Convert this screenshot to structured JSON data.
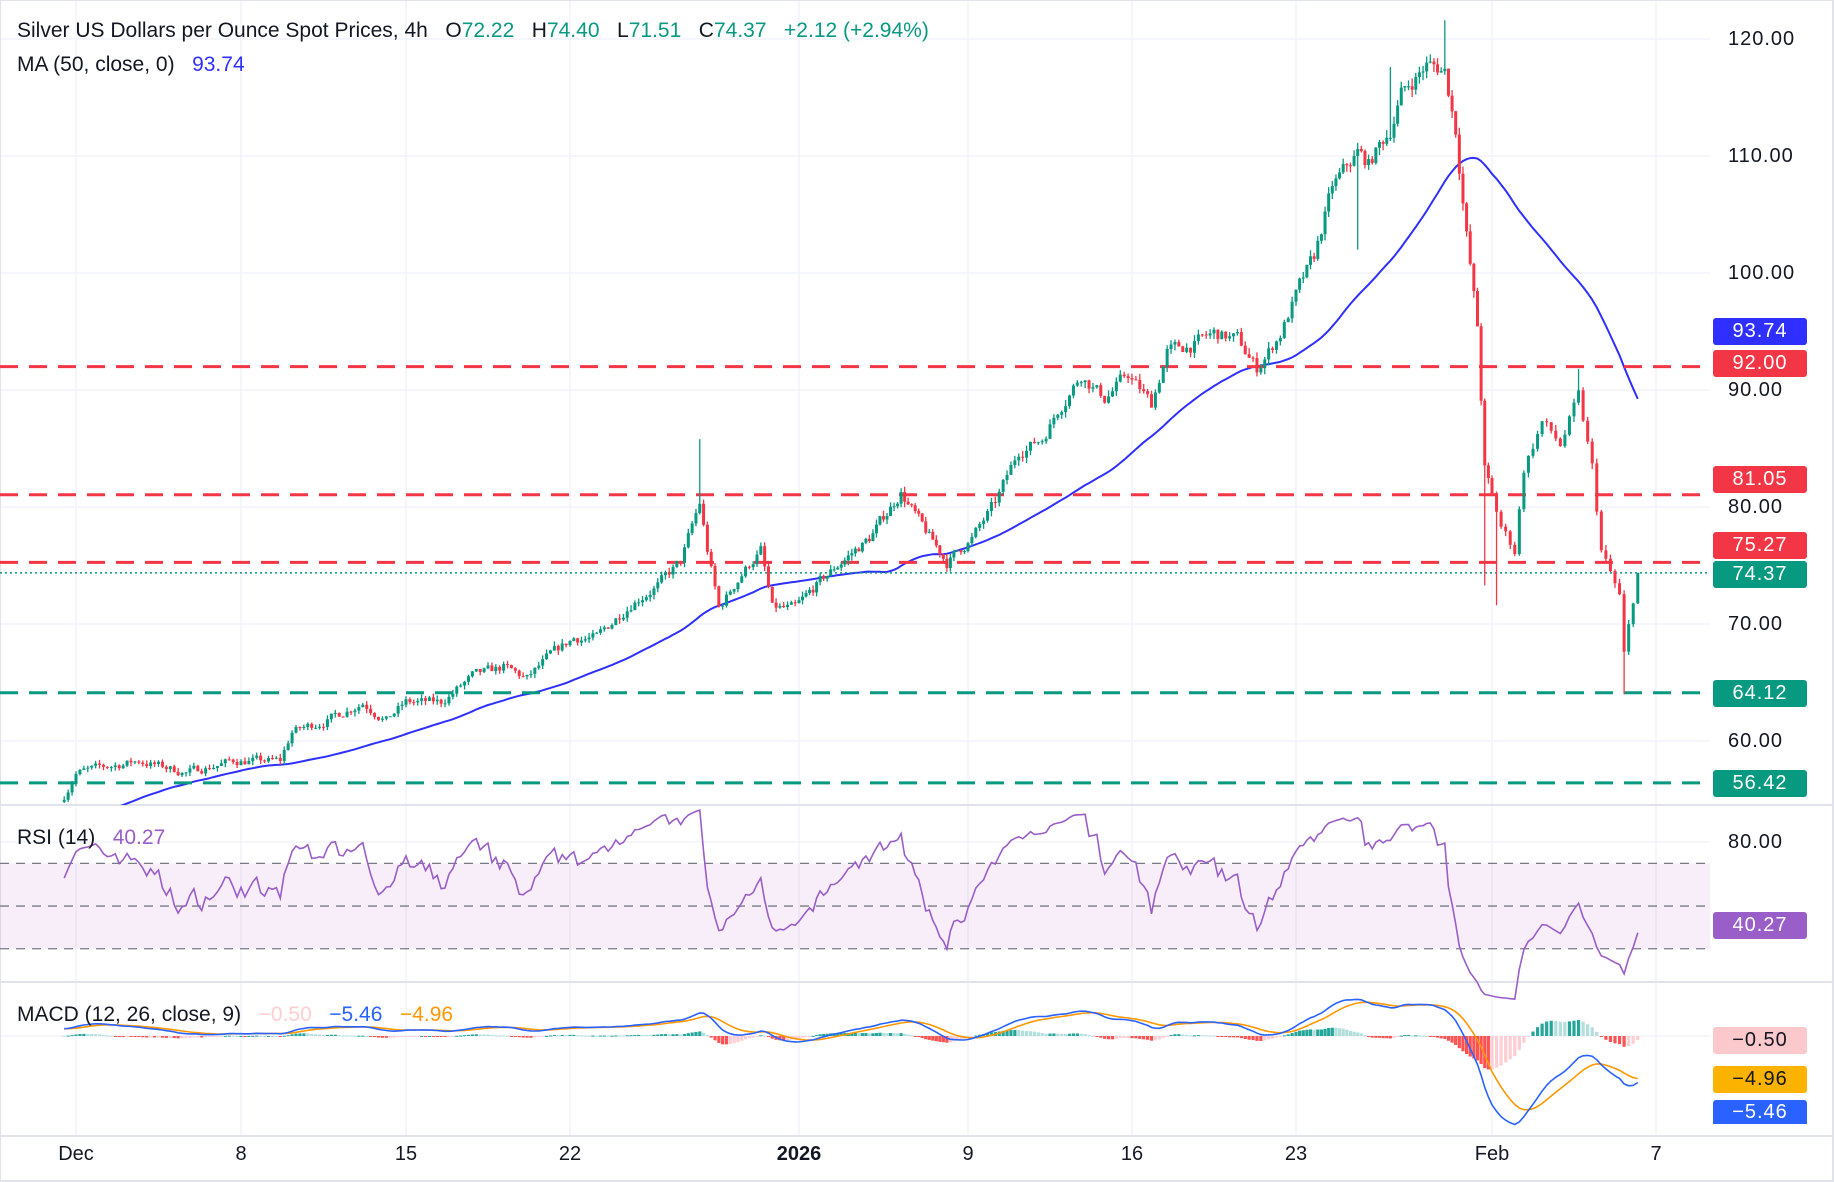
{
  "header": {
    "title": "Silver US Dollars per Ounce Spot Prices, 4h",
    "o_label": "O",
    "open": "72.22",
    "h_label": "H",
    "high": "74.40",
    "l_label": "L",
    "low": "71.51",
    "c_label": "C",
    "close": "74.37",
    "change": "+2.12 (+2.94%)"
  },
  "ma": {
    "label": "MA (50, close, 0)",
    "value": "93.74"
  },
  "rsi": {
    "label": "RSI (14)",
    "value": "40.27",
    "axis_tick": "80.00"
  },
  "macd": {
    "label": "MACD (12, 26, close, 9)",
    "histogram": "−0.50",
    "macd": "−5.46",
    "signal": "−4.96"
  },
  "price_axis": {
    "ticks": [
      "120.00",
      "110.00",
      "100.00",
      "90.00",
      "80.00",
      "70.00",
      "60.00"
    ]
  },
  "levels": [
    {
      "value": "92.00",
      "color": "#f23645"
    },
    {
      "value": "81.05",
      "color": "#f23645"
    },
    {
      "value": "75.27",
      "color": "#f23645"
    },
    {
      "value": "64.12",
      "color": "#089981"
    },
    {
      "value": "56.42",
      "color": "#089981"
    }
  ],
  "last_price": "74.37",
  "date_axis": [
    {
      "label": "Dec",
      "date": "2025-12-01"
    },
    {
      "label": "8",
      "date": "2025-12-08"
    },
    {
      "label": "15",
      "date": "2025-12-15"
    },
    {
      "label": "22",
      "date": "2025-12-22"
    },
    {
      "label": "2026",
      "date": "2026-01-01"
    },
    {
      "label": "9",
      "date": "2026-01-09"
    },
    {
      "label": "16",
      "date": "2026-01-16"
    },
    {
      "label": "23",
      "date": "2026-01-23"
    },
    {
      "label": "Feb",
      "date": "2026-02-01"
    },
    {
      "label": "7",
      "date": "2026-02-07"
    }
  ],
  "colors": {
    "up": "#089981",
    "down": "#f23645",
    "ma": "#2f2fff",
    "rsi": "#9a5ec8",
    "macd": "#2962ff",
    "signal": "#ff9800",
    "hist_up_strong": "#26a69a",
    "hist_up_weak": "#b2dfdb",
    "hist_down_strong": "#ff5252",
    "hist_down_weak": "#ffcdd2",
    "signal_tag": "#fbb300",
    "hist_tag": "#fbc8cc"
  },
  "chart_data": {
    "type": "candlestick",
    "interval": "4h",
    "ylim": [
      54,
      122
    ],
    "rsi_levels": [
      70,
      50,
      30
    ],
    "close_path": [
      [
        "2025-11-30T12:00",
        55.3
      ],
      [
        "2025-12-01T00:00",
        57.3
      ],
      [
        "2025-12-03T16:00",
        58.3
      ],
      [
        "2025-12-05T16:00",
        57.3
      ],
      [
        "2025-12-07T16:00",
        58.3
      ],
      [
        "2025-12-09T16:00",
        58.3
      ],
      [
        "2025-12-10T04:00",
        60.8
      ],
      [
        "2025-12-11T16:00",
        61.8
      ],
      [
        "2025-12-13T04:00",
        63.3
      ],
      [
        "2025-12-14T04:00",
        61.8
      ],
      [
        "2025-12-15T00:00",
        63.3
      ],
      [
        "2025-12-16T12:00",
        63.3
      ],
      [
        "2025-12-17T20:00",
        65.5
      ],
      [
        "2025-12-19T04:00",
        66.3
      ],
      [
        "2025-12-20T04:00",
        65.3
      ],
      [
        "2025-12-21T04:00",
        67.3
      ],
      [
        "2025-12-22T04:00",
        68.8
      ],
      [
        "2025-12-23T04:00",
        68.8
      ],
      [
        "2025-12-24T16:00",
        71.8
      ],
      [
        "2025-12-25T20:00",
        73.3
      ],
      [
        "2025-12-26T20:00",
        75.3
      ],
      [
        "2025-12-27T08:00",
        78.3
      ],
      [
        "2025-12-27T16:00",
        80.3
      ],
      [
        "2025-12-28T00:00",
        76.3
      ],
      [
        "2025-12-28T12:00",
        71.3
      ],
      [
        "2025-12-29T12:00",
        74.3
      ],
      [
        "2025-12-30T08:00",
        76.3
      ],
      [
        "2025-12-30T20:00",
        71.3
      ],
      [
        "2025-12-31T20:00",
        71.3
      ],
      [
        "2026-01-01T20:00",
        73.3
      ],
      [
        "2026-01-03T00:00",
        75.3
      ],
      [
        "2026-01-04T08:00",
        77.3
      ],
      [
        "2026-01-05T20:00",
        81.3
      ],
      [
        "2026-01-06T20:00",
        78.3
      ],
      [
        "2026-01-08T00:00",
        75.3
      ],
      [
        "2026-01-09T04:00",
        77.3
      ],
      [
        "2026-01-10T04:00",
        80.3
      ],
      [
        "2026-01-11T04:00",
        84.8
      ],
      [
        "2026-01-12T04:00",
        85.8
      ],
      [
        "2026-01-12T20:00",
        88.3
      ],
      [
        "2026-01-13T20:00",
        91.3
      ],
      [
        "2026-01-14T20:00",
        89.3
      ],
      [
        "2026-01-15T20:00",
        91.3
      ],
      [
        "2026-01-16T20:00",
        88.8
      ],
      [
        "2026-01-17T12:00",
        93.3
      ],
      [
        "2026-01-18T12:00",
        93.8
      ],
      [
        "2026-01-19T12:00",
        94.8
      ],
      [
        "2026-01-20T12:00",
        94.3
      ],
      [
        "2026-01-21T08:00",
        91.8
      ],
      [
        "2026-01-22T08:00",
        94.8
      ],
      [
        "2026-01-23T04:00",
        98.8
      ],
      [
        "2026-01-23T20:00",
        101.3
      ],
      [
        "2026-01-24T16:00",
        107.3
      ],
      [
        "2026-01-25T20:00",
        110.3
      ],
      [
        "2026-01-26T08:00",
        109.3
      ],
      [
        "2026-01-27T08:00",
        112.3
      ],
      [
        "2026-01-27T20:00",
        115.3
      ],
      [
        "2026-01-29T00:00",
        117.8
      ],
      [
        "2026-01-29T20:00",
        117.3
      ],
      [
        "2026-01-30T08:00",
        112.3
      ],
      [
        "2026-01-30T20:00",
        103.3
      ],
      [
        "2026-01-31T08:00",
        95.3
      ],
      [
        "2026-01-31T16:00",
        83.3
      ],
      [
        "2026-02-01T08:00",
        78.3
      ],
      [
        "2026-02-01T20:00",
        76.3
      ],
      [
        "2026-02-02T04:00",
        83.3
      ],
      [
        "2026-02-02T20:00",
        87.3
      ],
      [
        "2026-02-03T12:00",
        85.3
      ],
      [
        "2026-02-04T04:00",
        89.3
      ],
      [
        "2026-02-04T16:00",
        83.3
      ],
      [
        "2026-02-05T00:00",
        76.3
      ],
      [
        "2026-02-05T16:00",
        72.3
      ],
      [
        "2026-02-05T20:00",
        67.3
      ],
      [
        "2026-02-06T08:00",
        74.37
      ]
    ],
    "extreme_highs": [
      [
        "2025-12-27T16:00",
        85.8
      ],
      [
        "2026-01-27T08:00",
        117.6
      ],
      [
        "2026-01-29T20:00",
        121.6
      ],
      [
        "2026-02-04T04:00",
        91.8
      ]
    ],
    "extreme_lows": [
      [
        "2026-01-25T20:00",
        102.0
      ],
      [
        "2026-01-31T16:00",
        73.3
      ],
      [
        "2026-02-01T04:00",
        71.6
      ],
      [
        "2026-02-05T20:00",
        64.0
      ]
    ]
  }
}
